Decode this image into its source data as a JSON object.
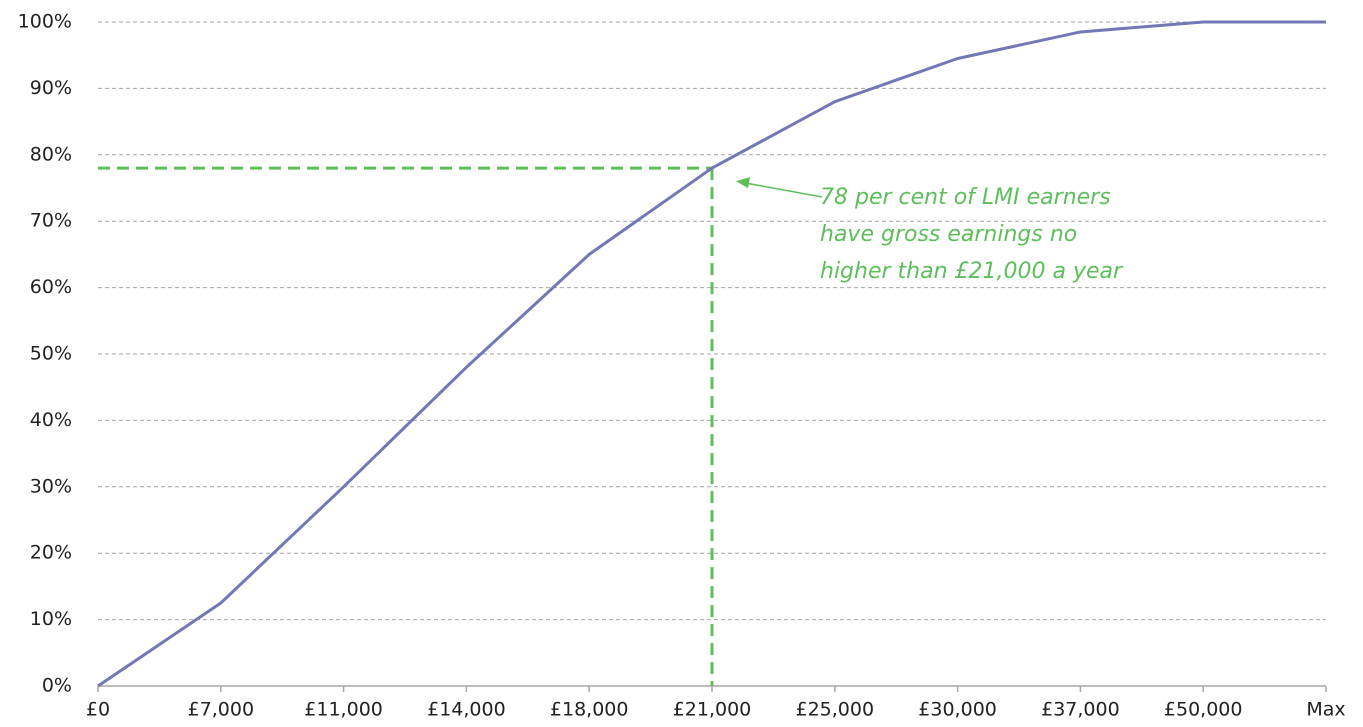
{
  "chart_data": {
    "type": "line",
    "categories": [
      "£0",
      "£7,000",
      "£11,000",
      "£14,000",
      "£18,000",
      "£21,000",
      "£25,000",
      "£30,000",
      "£37,000",
      "£50,000",
      "Max"
    ],
    "series": [
      {
        "color": "#7377b5",
        "values": [
          0,
          12.5,
          30,
          48,
          65,
          78,
          88,
          94.5,
          98.5,
          100,
          100
        ]
      }
    ],
    "ylim": [
      0,
      100
    ],
    "yticks": [
      {
        "value": 0,
        "label": "0%"
      },
      {
        "value": 10,
        "label": "10%"
      },
      {
        "value": 20,
        "label": "20%"
      },
      {
        "value": 30,
        "label": "30%"
      },
      {
        "value": 40,
        "label": "40%"
      },
      {
        "value": 50,
        "label": "50%"
      },
      {
        "value": 60,
        "label": "60%"
      },
      {
        "value": 70,
        "label": "70%"
      },
      {
        "value": 80,
        "label": "80%"
      },
      {
        "value": 90,
        "label": "90%"
      },
      {
        "value": 100,
        "label": "100%"
      }
    ],
    "grid": true,
    "reference_line": {
      "x": "£21,000",
      "y": 78,
      "color": "#5cbf5a"
    },
    "annotation": {
      "lines": [
        "78 per cent of LMI earners",
        "have gross earnings no",
        "higher than £21,000 a year"
      ],
      "color": "#5cbf5a"
    }
  }
}
